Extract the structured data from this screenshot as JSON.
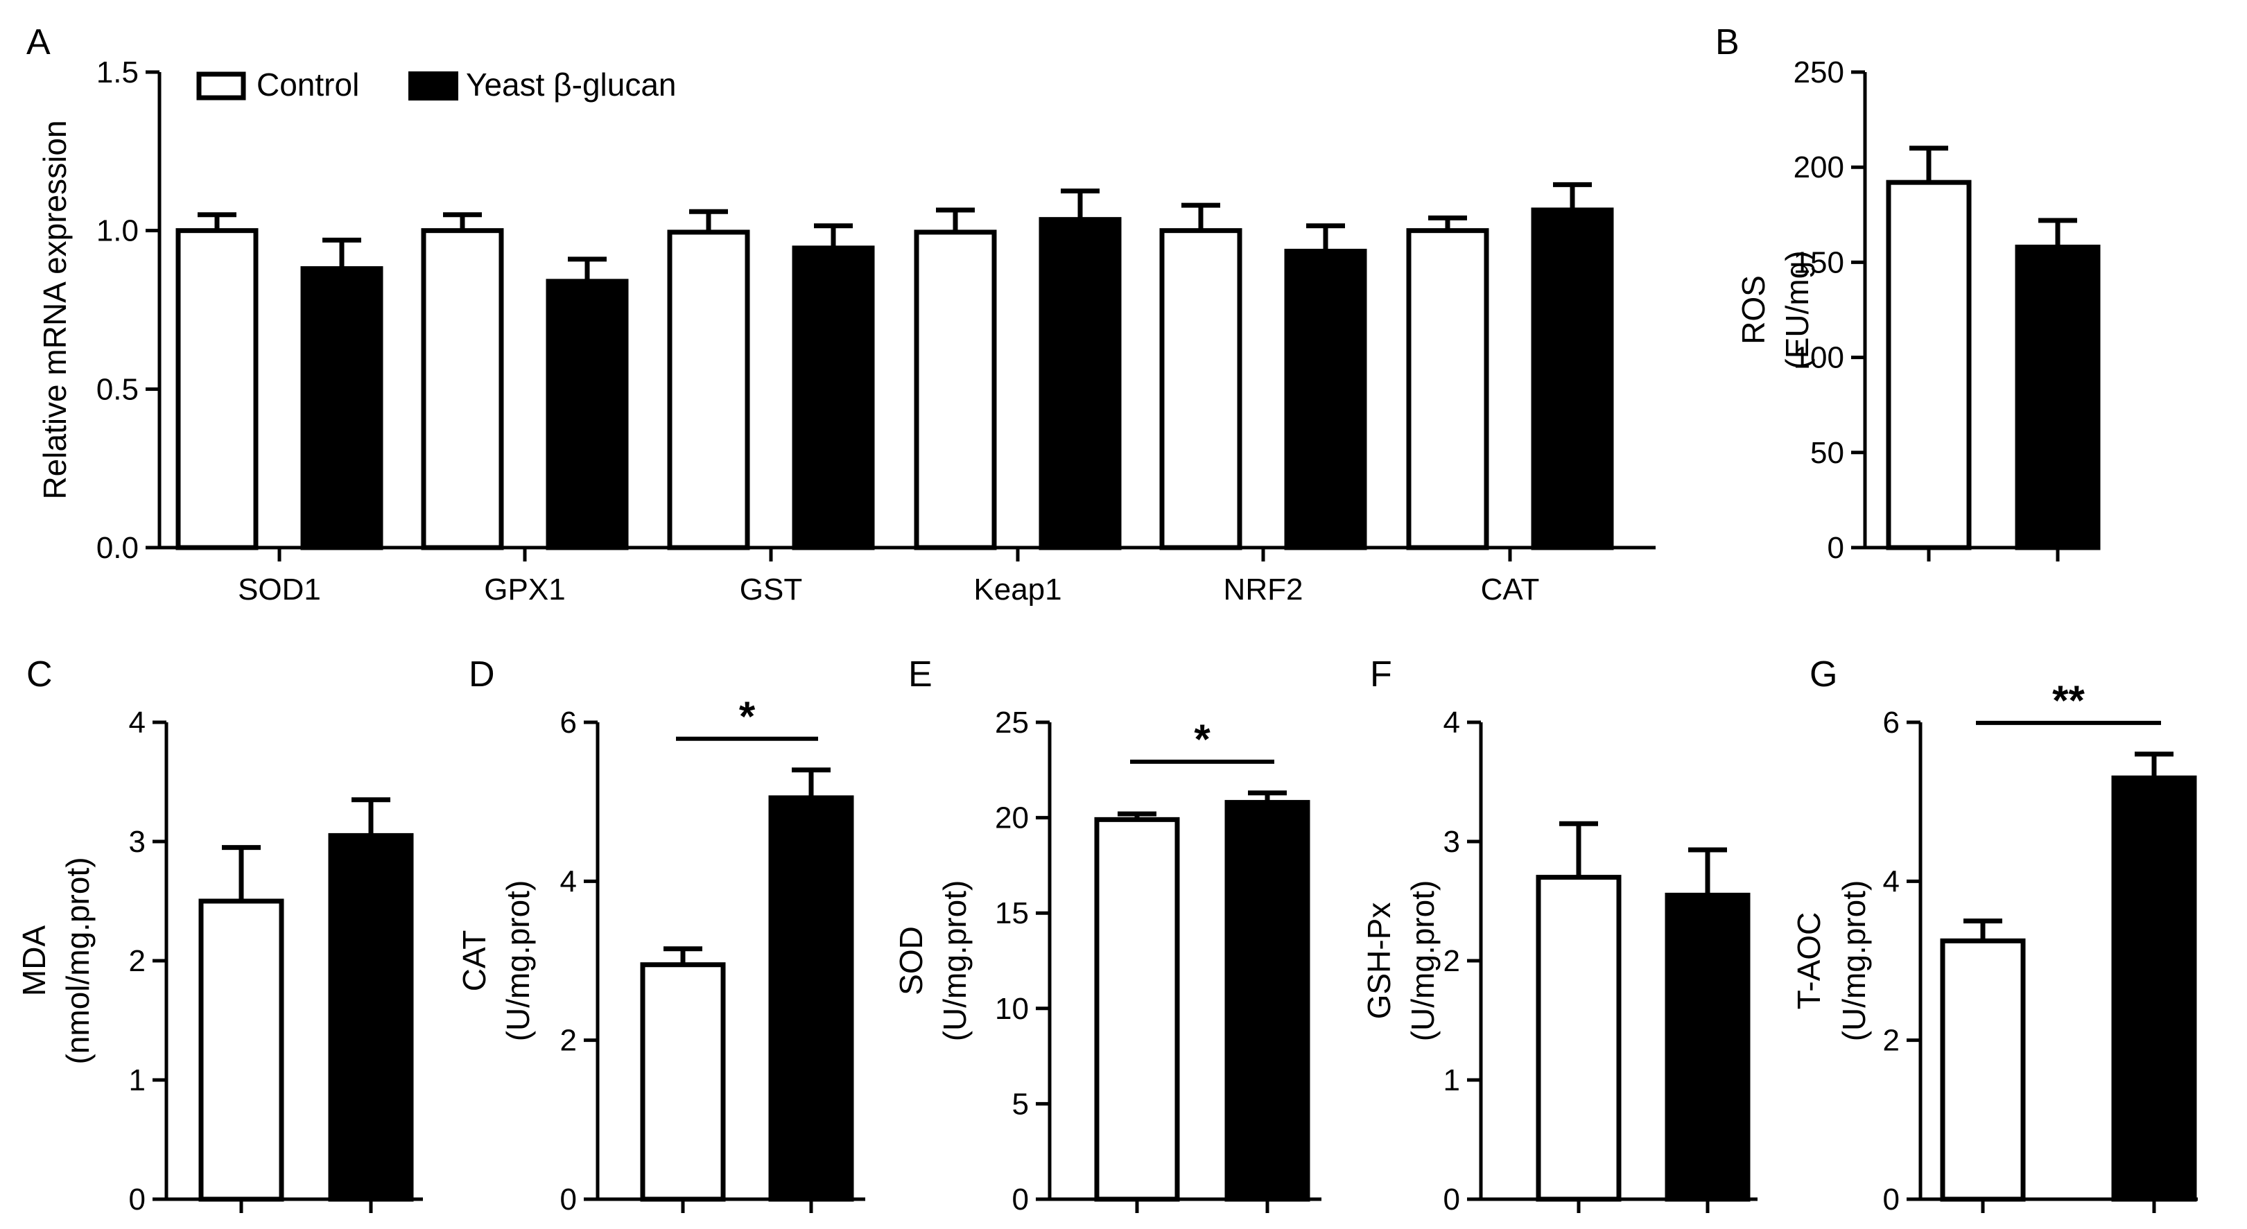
{
  "legend": {
    "control_label": "Control",
    "treatment_label": "Yeast β-glucan"
  },
  "chart_data": [
    {
      "panel": "A",
      "type": "bar",
      "title": "",
      "xlabel": "",
      "ylabel": "Relative mRNA expression",
      "categories": [
        "SOD1",
        "GPX1",
        "GST",
        "Keap1",
        "NRF2",
        "CAT"
      ],
      "series": [
        {
          "name": "Control",
          "values": [
            1.0,
            1.0,
            0.995,
            0.995,
            1.0,
            1.0
          ],
          "errors": [
            0.05,
            0.05,
            0.065,
            0.07,
            0.08,
            0.04
          ]
        },
        {
          "name": "Yeast β-glucan",
          "values": [
            0.88,
            0.84,
            0.945,
            1.035,
            0.935,
            1.065
          ],
          "errors": [
            0.09,
            0.07,
            0.07,
            0.09,
            0.08,
            0.08
          ]
        }
      ],
      "ylim": [
        0,
        1.5
      ],
      "yticks": [
        0,
        0.5,
        1,
        1.5
      ],
      "ytick_labels": [
        "0.0",
        "0.5",
        "1.0",
        "1.5"
      ],
      "significance": []
    },
    {
      "panel": "B",
      "type": "bar",
      "ylabel": [
        "ROS",
        "(EU/mg)"
      ],
      "values": [
        192,
        158
      ],
      "errors": [
        18,
        14
      ],
      "ylim": [
        0,
        250
      ],
      "yticks": [
        0,
        50,
        100,
        150,
        200,
        250
      ],
      "ytick_labels": [
        "0",
        "50",
        "100",
        "150",
        "200",
        "250"
      ],
      "significance": ""
    },
    {
      "panel": "C",
      "type": "bar",
      "ylabel": [
        "MDA",
        "(nmol/mg.prot)"
      ],
      "values": [
        2.5,
        3.05
      ],
      "errors": [
        0.45,
        0.3
      ],
      "ylim": [
        0,
        4
      ],
      "yticks": [
        0,
        1,
        2,
        3,
        4
      ],
      "ytick_labels": [
        "0",
        "1",
        "2",
        "3",
        "4"
      ],
      "significance": ""
    },
    {
      "panel": "D",
      "type": "bar",
      "ylabel": [
        "CAT",
        "(U/mg.prot)"
      ],
      "values": [
        2.95,
        5.05
      ],
      "errors": [
        0.2,
        0.35
      ],
      "ylim": [
        0,
        6
      ],
      "yticks": [
        0,
        2,
        4,
        6
      ],
      "ytick_labels": [
        "0",
        "2",
        "4",
        "6"
      ],
      "significance": "*"
    },
    {
      "panel": "E",
      "type": "bar",
      "ylabel": [
        "SOD",
        "(U/mg.prot)"
      ],
      "values": [
        19.9,
        20.8
      ],
      "errors": [
        0.3,
        0.5
      ],
      "ylim": [
        0,
        25
      ],
      "yticks": [
        0,
        5,
        10,
        15,
        20,
        25
      ],
      "ytick_labels": [
        "0",
        "5",
        "10",
        "15",
        "20",
        "25"
      ],
      "significance": "*"
    },
    {
      "panel": "F",
      "type": "bar",
      "ylabel": [
        "GSH-Px",
        "(U/mg.prot)"
      ],
      "values": [
        2.7,
        2.55
      ],
      "errors": [
        0.45,
        0.38
      ],
      "ylim": [
        0,
        4
      ],
      "yticks": [
        0,
        1,
        2,
        3,
        4
      ],
      "ytick_labels": [
        "0",
        "1",
        "2",
        "3",
        "4"
      ],
      "significance": ""
    },
    {
      "panel": "G",
      "type": "bar",
      "ylabel": [
        "T-AOC",
        "(U/mg.prot)"
      ],
      "values": [
        3.25,
        5.3
      ],
      "errors": [
        0.25,
        0.3
      ],
      "ylim": [
        0,
        6
      ],
      "yticks": [
        0,
        2,
        4,
        6
      ],
      "ytick_labels": [
        "0",
        "2",
        "4",
        "6"
      ],
      "significance": "**"
    }
  ]
}
